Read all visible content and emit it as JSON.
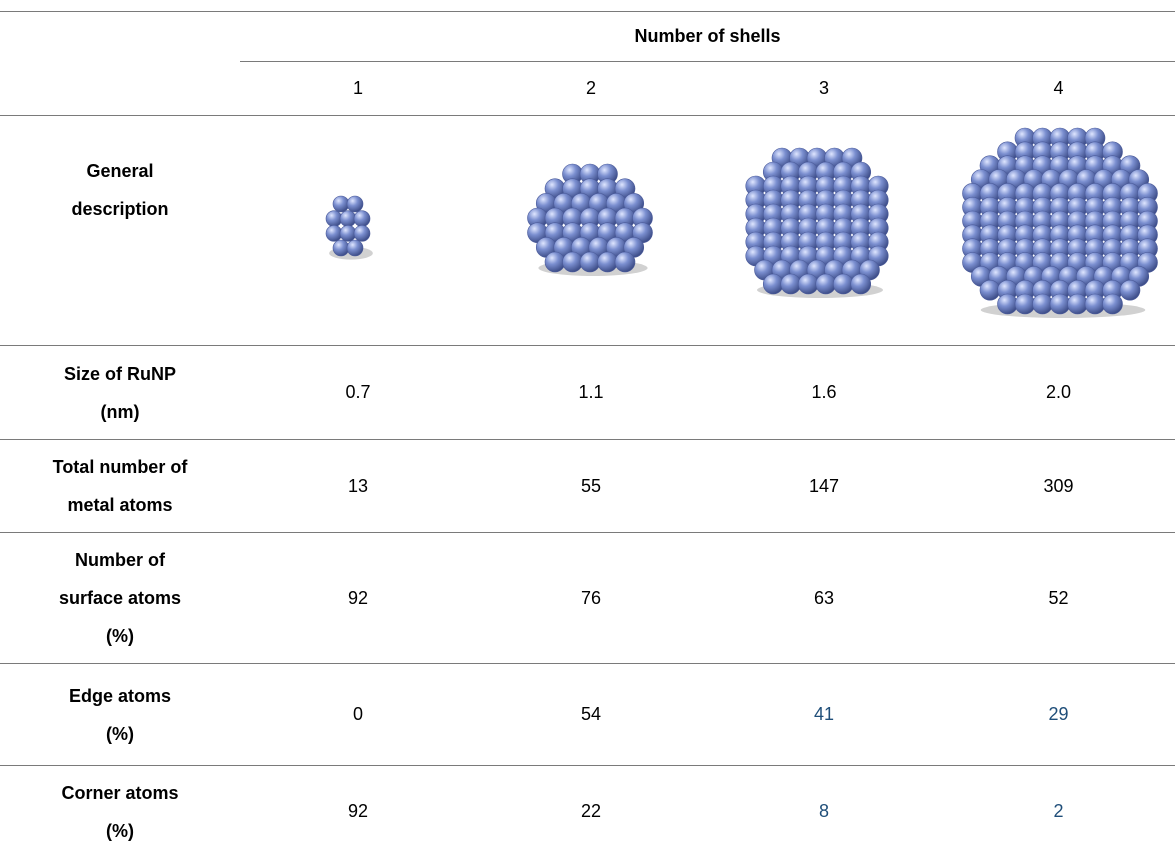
{
  "header": {
    "group_title": "Number of shells",
    "shells": [
      "1",
      "2",
      "3",
      "4"
    ]
  },
  "rows": {
    "description": {
      "label": [
        "General",
        "description"
      ]
    },
    "size": {
      "label": [
        "Size of RuNP",
        "(nm)"
      ],
      "values": [
        "0.7",
        "1.1",
        "1.6",
        "2.0"
      ]
    },
    "total": {
      "label": [
        "Total number of",
        "metal atoms"
      ],
      "values": [
        "13",
        "55",
        "147",
        "309"
      ]
    },
    "surface": {
      "label": [
        "Number of",
        "surface atoms",
        "(%)"
      ],
      "values": [
        "92",
        "76",
        "63",
        "52"
      ]
    },
    "edge": {
      "label": [
        "Edge atoms",
        "(%)"
      ],
      "values": [
        "0",
        "54",
        "41",
        "29"
      ]
    },
    "corner": {
      "label": [
        "Corner atoms",
        "(%)"
      ],
      "values": [
        "92",
        "22",
        "8",
        "2"
      ]
    }
  },
  "colors": {
    "atom": "#7b8fd0",
    "rule": "#7a7a7a",
    "highlight_text": "#1f4e79"
  }
}
